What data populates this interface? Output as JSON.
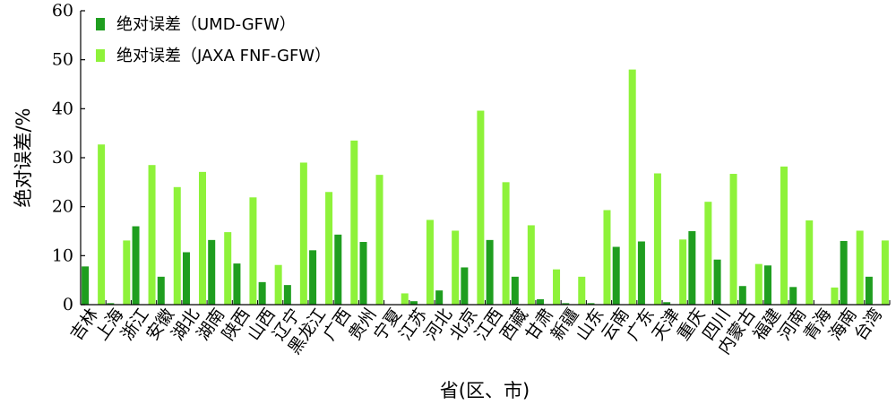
{
  "chart_data": {
    "type": "bar",
    "xlabel": "省(区、市)",
    "ylabel": "绝对误差/%",
    "ylim": [
      0,
      60
    ],
    "yticks": [
      0,
      10,
      20,
      30,
      40,
      50,
      60
    ],
    "grid": false,
    "legend_position": "top-left",
    "categories": [
      "吉林",
      "上海",
      "浙江",
      "安徽",
      "湖北",
      "湖南",
      "陕西",
      "山西",
      "辽宁",
      "黑龙江",
      "广西",
      "贵州",
      "宁夏",
      "江苏",
      "河北",
      "北京",
      "江西",
      "西藏",
      "甘肃",
      "新疆",
      "山东",
      "云南",
      "广东",
      "天津",
      "重庆",
      "四川",
      "内蒙古",
      "福建",
      "河南",
      "青海",
      "海南",
      "台湾"
    ],
    "series": [
      {
        "name": "绝对误差（UMD-GFW）",
        "color": "#1f9e1f",
        "values": [
          7.8,
          0.3,
          16.0,
          5.7,
          10.7,
          13.2,
          8.4,
          4.6,
          4.0,
          11.1,
          14.3,
          12.8,
          0.0,
          0.7,
          2.9,
          7.6,
          13.2,
          5.7,
          1.1,
          0.3,
          0.3,
          11.8,
          12.9,
          0.5,
          15.0,
          9.2,
          3.8,
          8.0,
          3.6,
          0.0,
          13.0,
          5.7
        ]
      },
      {
        "name": "绝对误差（JAXA FNF-GFW）",
        "color": "#8ef23a",
        "values": [
          32.7,
          13.1,
          28.5,
          24.0,
          27.1,
          14.8,
          21.9,
          8.1,
          29.0,
          23.0,
          33.5,
          26.5,
          2.3,
          17.3,
          15.1,
          39.6,
          25.0,
          16.2,
          7.2,
          5.7,
          19.3,
          48.0,
          26.8,
          13.3,
          21.0,
          26.7,
          8.3,
          28.2,
          17.2,
          3.5,
          15.1,
          13.1
        ]
      }
    ]
  }
}
